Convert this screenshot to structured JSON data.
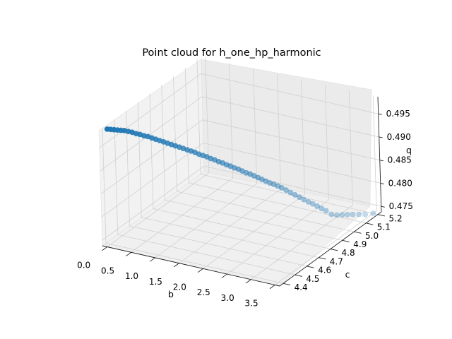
{
  "chart_data": {
    "type": "scatter",
    "projection": "3d",
    "title": "Point cloud for h_one_hp_harmonic",
    "xlabel": "b",
    "ylabel": "c",
    "zlabel": "q",
    "grid": true,
    "xticks": [
      "0.0",
      "0.5",
      "1.0",
      "1.5",
      "2.0",
      "2.5",
      "3.0",
      "3.5"
    ],
    "yticks": [
      "4.4",
      "4.5",
      "4.6",
      "4.7",
      "4.8",
      "4.9",
      "5.0",
      "5.1",
      "5.2"
    ],
    "zticks": [
      "0.475",
      "0.480",
      "0.485",
      "0.490",
      "0.495"
    ],
    "xlim": [
      -0.1,
      3.6
    ],
    "ylim": [
      4.37,
      5.23
    ],
    "zlim": [
      0.4738,
      0.4987
    ],
    "point_color": "#1f77b4",
    "series": [
      {
        "x": [
          0.0,
          0.04,
          0.08,
          0.12,
          0.16,
          0.2,
          0.25,
          0.3,
          0.35,
          0.4,
          0.45,
          0.5,
          0.55,
          0.6,
          0.65,
          0.7,
          0.75,
          0.8,
          0.85,
          0.9,
          0.95,
          1.0,
          1.05,
          1.1,
          1.15,
          1.2,
          1.25,
          1.3,
          1.35,
          1.4,
          1.45,
          1.5,
          1.55,
          1.6,
          1.65,
          1.7,
          1.75,
          1.8,
          1.85,
          1.9,
          1.95,
          2.0,
          2.05,
          2.1,
          2.15,
          2.2,
          2.26,
          2.32,
          2.38,
          2.44,
          2.5,
          2.56,
          2.62,
          2.68,
          2.74,
          2.8,
          2.88,
          2.96,
          3.04,
          3.12,
          3.2,
          3.3,
          3.4,
          3.5
        ],
        "y": [
          4.4,
          4.4125,
          4.425,
          4.4375,
          4.45,
          4.4625,
          4.475,
          4.4875,
          4.5,
          4.5125,
          4.525,
          4.5375,
          4.55,
          4.5625,
          4.575,
          4.5875,
          4.6,
          4.6125,
          4.625,
          4.6375,
          4.65,
          4.6625,
          4.675,
          4.6875,
          4.7,
          4.7125,
          4.725,
          4.7375,
          4.75,
          4.7625,
          4.775,
          4.7875,
          4.8,
          4.8125,
          4.825,
          4.8375,
          4.85,
          4.8625,
          4.875,
          4.8875,
          4.9,
          4.9125,
          4.925,
          4.9375,
          4.95,
          4.9625,
          4.975,
          4.9875,
          5.0,
          5.0125,
          5.025,
          5.0375,
          5.05,
          5.0625,
          5.075,
          5.0875,
          5.1,
          5.1125,
          5.125,
          5.1375,
          5.15,
          5.1625,
          5.175,
          5.2
        ],
        "z": [
          0.4987,
          0.4985,
          0.4983,
          0.4981,
          0.4979,
          0.4977,
          0.4974,
          0.4971,
          0.4967,
          0.4964,
          0.496,
          0.4957,
          0.4953,
          0.4949,
          0.4945,
          0.4941,
          0.4937,
          0.4933,
          0.4929,
          0.4925,
          0.4921,
          0.4917,
          0.4913,
          0.4909,
          0.4904,
          0.49,
          0.4896,
          0.4891,
          0.4887,
          0.4882,
          0.4878,
          0.4873,
          0.4869,
          0.4864,
          0.486,
          0.4855,
          0.485,
          0.4846,
          0.4841,
          0.4836,
          0.4831,
          0.4826,
          0.4821,
          0.4817,
          0.4812,
          0.4807,
          0.4801,
          0.4795,
          0.4789,
          0.4783,
          0.4777,
          0.4771,
          0.4766,
          0.476,
          0.4754,
          0.4748,
          0.474,
          0.4733,
          0.4726,
          0.4718,
          0.4711,
          0.4702,
          0.4693,
          0.4684
        ]
      }
    ]
  }
}
